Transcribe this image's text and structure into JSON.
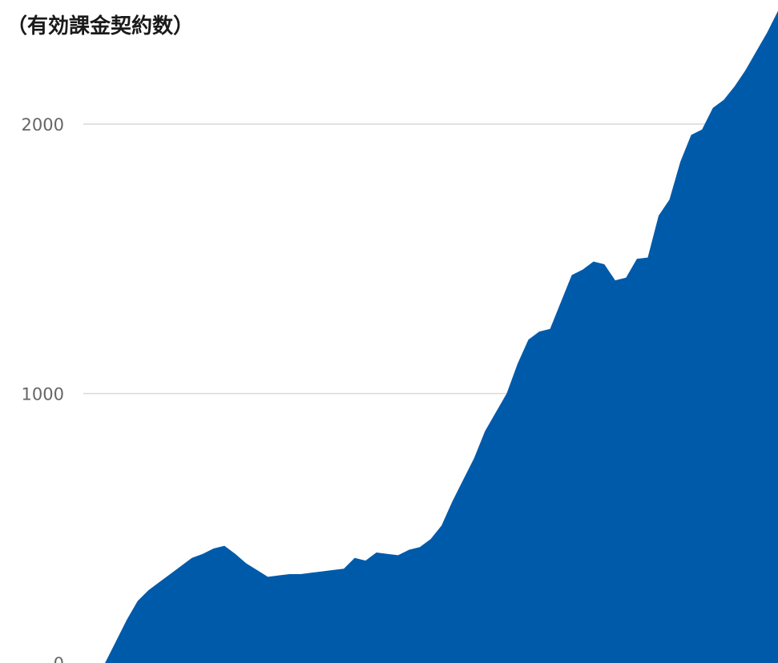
{
  "chart_data": {
    "type": "area",
    "title": "（有効課金契約数）",
    "xlabel": "",
    "ylabel": "",
    "ylim": [
      0,
      2000
    ],
    "yticks": [
      0,
      1000,
      2000
    ],
    "grid": true,
    "fill_color": "#005aaa",
    "grid_color": "#d9d9d9",
    "series": [
      {
        "values": [
          0,
          0,
          0,
          80,
          160,
          230,
          270,
          300,
          330,
          360,
          390,
          405,
          425,
          435,
          405,
          370,
          345,
          320,
          325,
          330,
          330,
          335,
          340,
          345,
          350,
          390,
          380,
          410,
          405,
          400,
          420,
          430,
          460,
          510,
          600,
          680,
          760,
          860,
          930,
          1000,
          1110,
          1200,
          1230,
          1240,
          1340,
          1440,
          1460,
          1490,
          1480,
          1420,
          1430,
          1500,
          1505,
          1660,
          1720,
          1860,
          1960,
          1980,
          2060,
          2090,
          2140,
          2200,
          2270,
          2340,
          2420
        ]
      }
    ]
  }
}
